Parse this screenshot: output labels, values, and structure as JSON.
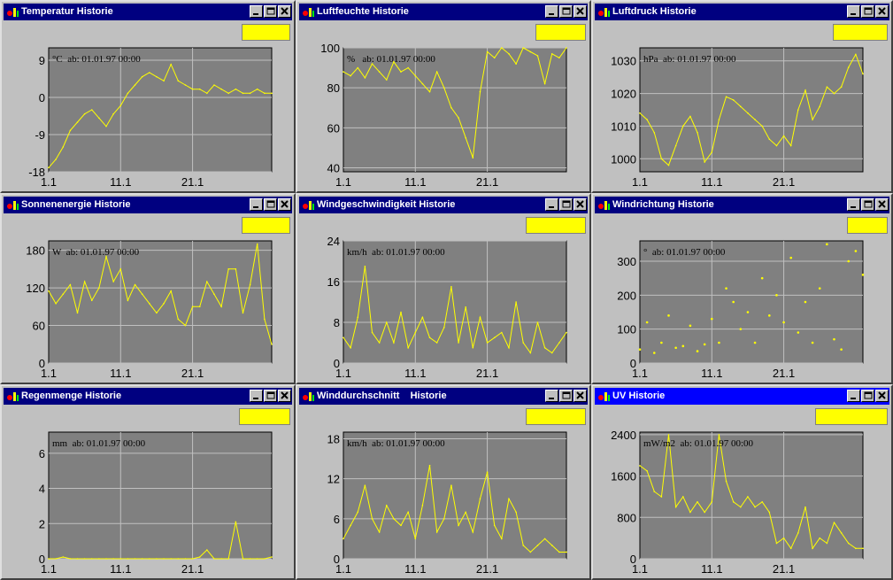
{
  "colors": {
    "plot_bg": "#808080",
    "series": "#ffff00",
    "grid": "#c0c0c0",
    "titlebar": "#000080",
    "titlebar_active": "#0000ff"
  },
  "icons": {
    "app": "weather-app-icon",
    "minimize": "minimize-icon",
    "maximize": "maximize-icon",
    "close": "close-icon"
  },
  "windows": [
    {
      "title": "Temperatur Historie",
      "unit_label": "°C  ab: 01.01.97 00:00"
    },
    {
      "title": "Luftfeuchte Historie",
      "unit_label": "%   ab: 01.01.97 00:00"
    },
    {
      "title": "Luftdruck Historie",
      "unit_label": "hPa  ab: 01.01.97 00:00"
    },
    {
      "title": "Sonnenenergie Historie",
      "unit_label": "W  ab: 01.01.97 00:00"
    },
    {
      "title": "Windgeschwindigkeit Historie",
      "unit_label": "km/h  ab: 01.01.97 00:00"
    },
    {
      "title": "Windrichtung Historie",
      "unit_label": "°  ab: 01.01.97 00:00"
    },
    {
      "title": "Regenmenge Historie",
      "unit_label": "mm  ab: 01.01.97 00:00"
    },
    {
      "title": "Winddurchschnitt    Historie",
      "unit_label": "km/h  ab: 01.01.97 00:00"
    },
    {
      "title": "UV Historie",
      "unit_label": "mW/m2  ab: 01.01.97 00:00"
    }
  ],
  "chart_data": [
    {
      "type": "line",
      "xlabels": [
        "1.1",
        "11.1",
        "21.1"
      ],
      "xlim": [
        1,
        32
      ],
      "ylim": [
        -18,
        12
      ],
      "yticks": [
        -18,
        -9,
        0,
        9
      ],
      "grid": true,
      "series": [
        {
          "x": [
            1,
            2,
            3,
            4,
            5,
            6,
            7,
            8,
            9,
            10,
            11,
            12,
            13,
            14,
            15,
            16,
            17,
            18,
            19,
            20,
            21,
            22,
            23,
            24,
            25,
            26,
            27,
            28,
            29,
            30,
            31,
            32
          ],
          "values": [
            -17,
            -15,
            -12,
            -8,
            -6,
            -4,
            -3,
            -5,
            -7,
            -4,
            -2,
            1,
            3,
            5,
            6,
            5,
            4,
            8,
            4,
            3,
            2,
            2,
            1,
            3,
            2,
            1,
            2,
            1,
            1,
            2,
            1,
            1
          ]
        }
      ]
    },
    {
      "type": "line",
      "xlabels": [
        "1.1",
        "11.1",
        "21.1"
      ],
      "xlim": [
        1,
        32
      ],
      "ylim": [
        38,
        100
      ],
      "yticks": [
        40,
        60,
        80,
        100
      ],
      "grid": true,
      "series": [
        {
          "x": [
            1,
            2,
            3,
            4,
            5,
            6,
            7,
            8,
            9,
            10,
            11,
            12,
            13,
            14,
            15,
            16,
            17,
            18,
            19,
            20,
            21,
            22,
            23,
            24,
            25,
            26,
            27,
            28,
            29,
            30,
            31,
            32
          ],
          "values": [
            88,
            86,
            90,
            85,
            92,
            88,
            84,
            93,
            88,
            90,
            86,
            82,
            78,
            88,
            80,
            70,
            65,
            55,
            45,
            78,
            98,
            95,
            100,
            97,
            92,
            100,
            98,
            96,
            82,
            97,
            95,
            100
          ]
        }
      ]
    },
    {
      "type": "line",
      "xlabels": [
        "1.1",
        "11.1",
        "21.1"
      ],
      "xlim": [
        1,
        32
      ],
      "ylim": [
        996,
        1034
      ],
      "yticks": [
        1000,
        1010,
        1020,
        1030
      ],
      "grid": true,
      "series": [
        {
          "x": [
            1,
            2,
            3,
            4,
            5,
            6,
            7,
            8,
            9,
            10,
            11,
            12,
            13,
            14,
            15,
            16,
            17,
            18,
            19,
            20,
            21,
            22,
            23,
            24,
            25,
            26,
            27,
            28,
            29,
            30,
            31,
            32
          ],
          "values": [
            1014,
            1012,
            1008,
            1000,
            998,
            1004,
            1010,
            1013,
            1008,
            999,
            1002,
            1012,
            1019,
            1018,
            1016,
            1014,
            1012,
            1010,
            1006,
            1004,
            1007,
            1004,
            1015,
            1021,
            1012,
            1016,
            1022,
            1020,
            1022,
            1028,
            1032,
            1026
          ]
        }
      ]
    },
    {
      "type": "line",
      "xlabels": [
        "1.1",
        "11.1",
        "21.1"
      ],
      "xlim": [
        1,
        32
      ],
      "ylim": [
        0,
        195
      ],
      "yticks": [
        0,
        60,
        120,
        180
      ],
      "grid": true,
      "series": [
        {
          "x": [
            1,
            2,
            3,
            4,
            5,
            6,
            7,
            8,
            9,
            10,
            11,
            12,
            13,
            14,
            15,
            16,
            17,
            18,
            19,
            20,
            21,
            22,
            23,
            24,
            25,
            26,
            27,
            28,
            29,
            30,
            31,
            32
          ],
          "values": [
            115,
            95,
            110,
            125,
            80,
            130,
            100,
            120,
            170,
            130,
            150,
            100,
            125,
            110,
            95,
            80,
            95,
            115,
            70,
            60,
            90,
            90,
            130,
            110,
            90,
            150,
            150,
            80,
            125,
            190,
            70,
            30
          ]
        }
      ]
    },
    {
      "type": "line",
      "xlabels": [
        "1.1",
        "11.1",
        "21.1"
      ],
      "xlim": [
        1,
        32
      ],
      "ylim": [
        0,
        24
      ],
      "yticks": [
        0,
        8,
        16,
        24
      ],
      "grid": true,
      "series": [
        {
          "x": [
            1,
            2,
            3,
            4,
            5,
            6,
            7,
            8,
            9,
            10,
            11,
            12,
            13,
            14,
            15,
            16,
            17,
            18,
            19,
            20,
            21,
            22,
            23,
            24,
            25,
            26,
            27,
            28,
            29,
            30,
            31,
            32
          ],
          "values": [
            5,
            3,
            9,
            19,
            6,
            4,
            8,
            4,
            10,
            3,
            6,
            9,
            5,
            4,
            7,
            15,
            4,
            11,
            3,
            9,
            4,
            5,
            6,
            3,
            12,
            4,
            2,
            8,
            3,
            2,
            4,
            6
          ]
        }
      ]
    },
    {
      "type": "scatter",
      "xlabels": [
        "1.1",
        "11.1",
        "21.1"
      ],
      "xlim": [
        1,
        32
      ],
      "ylim": [
        0,
        360
      ],
      "yticks": [
        0,
        100,
        200,
        300
      ],
      "grid": true,
      "series": [
        {
          "x": [
            1,
            2,
            3,
            4,
            5,
            6,
            7,
            8,
            9,
            10,
            11,
            12,
            13,
            14,
            15,
            16,
            17,
            18,
            19,
            20,
            21,
            22,
            23,
            24,
            25,
            26,
            27,
            28,
            29,
            30,
            31,
            32
          ],
          "values": [
            40,
            120,
            30,
            60,
            140,
            45,
            50,
            110,
            35,
            55,
            130,
            60,
            220,
            180,
            100,
            150,
            60,
            250,
            140,
            200,
            120,
            310,
            90,
            180,
            60,
            220,
            350,
            70,
            40,
            300,
            330,
            260
          ]
        }
      ]
    },
    {
      "type": "line",
      "xlabels": [
        "1.1",
        "11.1",
        "21.1"
      ],
      "xlim": [
        1,
        32
      ],
      "ylim": [
        0,
        7.2
      ],
      "yticks": [
        0,
        2,
        4,
        6
      ],
      "grid": true,
      "series": [
        {
          "x": [
            1,
            2,
            3,
            4,
            5,
            6,
            7,
            8,
            9,
            10,
            11,
            12,
            13,
            14,
            15,
            16,
            17,
            18,
            19,
            20,
            21,
            22,
            23,
            24,
            25,
            26,
            27,
            28,
            29,
            30,
            31,
            32
          ],
          "values": [
            0,
            0,
            0.1,
            0,
            0,
            0,
            0,
            0,
            0,
            0,
            0,
            0,
            0,
            0,
            0,
            0,
            0,
            0,
            0,
            0,
            0,
            0.1,
            0.5,
            0,
            0,
            0,
            2.1,
            0,
            0,
            0,
            0,
            0.1
          ]
        }
      ]
    },
    {
      "type": "line",
      "xlabels": [
        "1.1",
        "11.1",
        "21.1"
      ],
      "xlim": [
        1,
        32
      ],
      "ylim": [
        0,
        19
      ],
      "yticks": [
        0,
        6,
        12,
        18
      ],
      "grid": true,
      "series": [
        {
          "x": [
            1,
            2,
            3,
            4,
            5,
            6,
            7,
            8,
            9,
            10,
            11,
            12,
            13,
            14,
            15,
            16,
            17,
            18,
            19,
            20,
            21,
            22,
            23,
            24,
            25,
            26,
            27,
            28,
            29,
            30,
            31,
            32
          ],
          "values": [
            3,
            5,
            7,
            11,
            6,
            4,
            8,
            6,
            5,
            7,
            3,
            8,
            14,
            4,
            6,
            11,
            5,
            7,
            4,
            9,
            13,
            5,
            3,
            9,
            7,
            2,
            1,
            2,
            3,
            2,
            1,
            1
          ]
        }
      ]
    },
    {
      "type": "line",
      "xlabels": [
        "1.1",
        "11.1",
        "21.1"
      ],
      "xlim": [
        1,
        32
      ],
      "ylim": [
        0,
        2450
      ],
      "yticks": [
        0,
        800,
        1600,
        2400
      ],
      "grid": true,
      "series": [
        {
          "x": [
            1,
            2,
            3,
            4,
            5,
            6,
            7,
            8,
            9,
            10,
            11,
            12,
            13,
            14,
            15,
            16,
            17,
            18,
            19,
            20,
            21,
            22,
            23,
            24,
            25,
            26,
            27,
            28,
            29,
            30,
            31,
            32
          ],
          "values": [
            1800,
            1700,
            1300,
            1200,
            2400,
            1000,
            1200,
            900,
            1100,
            900,
            1100,
            2400,
            1500,
            1100,
            1000,
            1200,
            1000,
            1100,
            900,
            300,
            400,
            200,
            500,
            1000,
            200,
            400,
            300,
            700,
            500,
            300,
            200,
            200
          ]
        }
      ]
    }
  ]
}
